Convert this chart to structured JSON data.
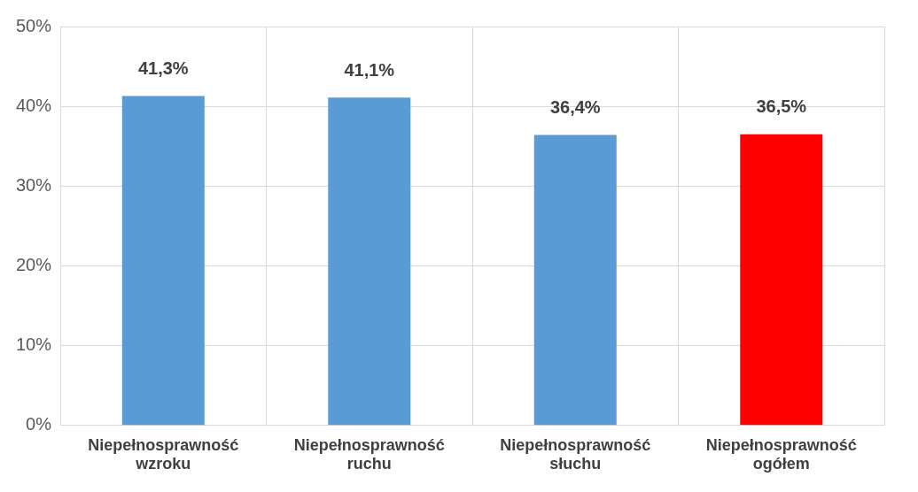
{
  "chart_data": {
    "type": "bar",
    "categories": [
      "Niepełnosprawność wzroku",
      "Niepełnosprawność ruchu",
      "Niepełnosprawność słuchu",
      "Niepełnosprawność ogółem"
    ],
    "values": [
      41.3,
      41.1,
      36.4,
      36.5
    ],
    "colors": [
      "#5b9bd5",
      "#5b9bd5",
      "#5b9bd5",
      "#ff0000"
    ],
    "value_labels": [
      "41,3%",
      "41,1%",
      "36,4%",
      "36,5%"
    ],
    "ylim": [
      0,
      50
    ],
    "yticks": [
      {
        "value": 0,
        "label": "0%"
      },
      {
        "value": 10,
        "label": "10%"
      },
      {
        "value": 20,
        "label": "20%"
      },
      {
        "value": 30,
        "label": "30%"
      },
      {
        "value": 40,
        "label": "40%"
      },
      {
        "value": 50,
        "label": "50%"
      }
    ],
    "grid": true,
    "legend": false
  }
}
